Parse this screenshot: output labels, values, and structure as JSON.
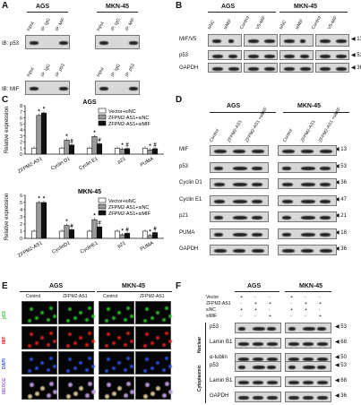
{
  "panels": {
    "A": {
      "label": "A",
      "cell_lines": [
        "AGS",
        "MKN-45"
      ],
      "top_blot_label": "IB: p53",
      "bottom_blot_label": "IB: MIF",
      "top_lanes": [
        "Input",
        "IP: IgG",
        "IP: MIF"
      ],
      "bottom_lanes": [
        "Input",
        "IP: IgG",
        "IP: p53"
      ]
    },
    "B": {
      "label": "B",
      "cell_lines": [
        "AGS",
        "MKN-45"
      ],
      "lanes": [
        "siNC",
        "siMIF",
        "Control",
        "V5-MIF",
        "siNC",
        "siMIF",
        "Control",
        "V5-MIF"
      ],
      "rows": [
        "MIF/V5",
        "p53",
        "GAPDH"
      ],
      "kda": [
        "13",
        "53",
        "36"
      ]
    },
    "C": {
      "label": "C",
      "legend": [
        "Vector+siNC",
        "ZFPM2-AS1+siNC",
        "ZFPM2-AS1+siMIF"
      ],
      "ylabel": "Relative expression",
      "charts": [
        {
          "title": "AGS"
        },
        {
          "title": "MKN-45"
        }
      ]
    },
    "D": {
      "label": "D",
      "cell_lines": [
        "AGS",
        "MKN-45"
      ],
      "lanes": [
        "Control",
        "ZFPM2-AS1",
        "ZFPM2-AS1 +siMIF"
      ],
      "rows": [
        "MIF",
        "p53",
        "Cyclin D1",
        "Cyclin E1",
        "p21",
        "PUMA",
        "GAPDH"
      ],
      "kda": [
        "13",
        "53",
        "36",
        "47",
        "21",
        "18",
        "36"
      ]
    },
    "E": {
      "label": "E",
      "cell_lines": [
        "AGS",
        "MKN-45"
      ],
      "columns": [
        "Control",
        "ZFPM2-AS1",
        "Control",
        "ZFPM2-AS1"
      ],
      "rows": [
        "p53",
        "MIF",
        "DAPI",
        "MERGE"
      ],
      "row_colors": [
        "#2fbf2f",
        "#e02020",
        "#3050e0",
        "#a070c0"
      ]
    },
    "F": {
      "label": "F",
      "cell_lines": [
        "AGS",
        "MKN-45"
      ],
      "conditions": [
        {
          "name": "Vector",
          "signs": [
            "+",
            "-",
            "-",
            "+",
            "-",
            "-"
          ]
        },
        {
          "name": "ZFPM2-AS1",
          "signs": [
            "-",
            "+",
            "+",
            "-",
            "+",
            "+"
          ]
        },
        {
          "name": "siNC",
          "signs": [
            "+",
            "+",
            "-",
            "+",
            "+",
            "-"
          ]
        },
        {
          "name": "siMIF",
          "signs": [
            "-",
            "-",
            "+",
            "-",
            "-",
            "+"
          ]
        }
      ],
      "fractions": [
        "Nuclear",
        "Cytoplasmic"
      ],
      "nuclear_rows": [
        "p53",
        "Lamin B1",
        "α-tublin"
      ],
      "nuclear_kda": [
        "53",
        "68",
        "50"
      ],
      "cyto_rows": [
        "p53",
        "Lamin B1",
        "GAPDH"
      ],
      "cyto_kda": [
        "53",
        "68",
        "36"
      ]
    }
  },
  "chart_data": [
    {
      "type": "bar",
      "title": "AGS",
      "ylabel": "Relative expression",
      "categories": [
        "ZFPM2-AS1",
        "Cyclin D1",
        "Cyclin E1",
        "p21",
        "PUMA"
      ],
      "ylim": [
        0,
        8
      ],
      "yticks": [
        0,
        1,
        2,
        3,
        4,
        5,
        6,
        7,
        8
      ],
      "series": [
        {
          "name": "Vector+siNC",
          "values": [
            1.0,
            1.0,
            1.0,
            1.0,
            1.0
          ]
        },
        {
          "name": "ZFPM2-AS1+siNC",
          "values": [
            6.4,
            2.3,
            2.9,
            0.8,
            0.7
          ]
        },
        {
          "name": "ZFPM2-AS1+siMIF",
          "values": [
            6.8,
            1.5,
            1.7,
            0.9,
            0.9
          ]
        }
      ],
      "annotations": [
        "*",
        "*",
        "*",
        "#",
        "*",
        "#",
        "*",
        "#",
        "*",
        "#"
      ]
    },
    {
      "type": "bar",
      "title": "MKN-45",
      "ylabel": "Relative expression",
      "categories": [
        "ZFPM2-AS1",
        "CyclinD1",
        "CyclinE1",
        "p21",
        "PUMA"
      ],
      "ylim": [
        0,
        6
      ],
      "yticks": [
        0,
        1,
        2,
        3,
        4,
        5,
        6
      ],
      "series": [
        {
          "name": "Vector+siNC",
          "values": [
            1.0,
            1.0,
            1.0,
            1.0,
            1.0
          ]
        },
        {
          "name": "ZFPM2-AS1+siNC",
          "values": [
            5.0,
            1.8,
            2.6,
            0.5,
            0.4
          ]
        },
        {
          "name": "ZFPM2-AS1+siMIF",
          "values": [
            5.0,
            1.2,
            1.6,
            0.7,
            0.8
          ]
        }
      ],
      "annotations": [
        "*",
        "*",
        "*",
        "#",
        "*",
        "#",
        "*",
        "#",
        "*",
        "#"
      ]
    }
  ]
}
